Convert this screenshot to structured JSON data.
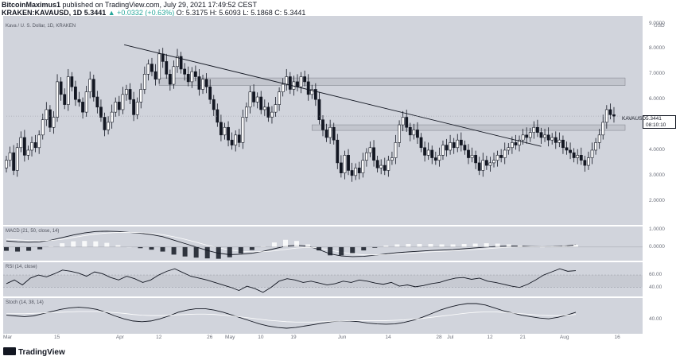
{
  "header": {
    "publisher": "BitcoinMaximus1",
    "published_line": "published on TradingView.com, July 29, 2021 17:49:52 CEST",
    "symbol_line": "KRAKEN:KAVAUSD, 1D",
    "price_line": "5.3441",
    "change_line": "▲ +0.0332 (+0.63%)",
    "ohlc_line": "O: 5.3175  H: 5.6093  L: 5.1868  C: 5.3441"
  },
  "chart_legend": "Kava / U. S. Dollar, 1D, KRAKEN",
  "currency": "USD",
  "price_tag": {
    "symbol": "KAVAUSD",
    "value": "5.3441",
    "timer": "08:10:10"
  },
  "footer": {
    "brand": "TradingView"
  },
  "colors": {
    "pane": "#d1d4dc",
    "candle_up": "#ffffff",
    "candle_down": "#131722",
    "zone": "#c2c5cd",
    "line": "#131722",
    "signal": "#ffffff"
  },
  "chart_data": [
    {
      "type": "candlestick",
      "title": "Kava / U. S. Dollar, 1D, KRAKEN",
      "ylabel": "USD",
      "y_ticks": [
        "9.0000",
        "8.0000",
        "7.0000",
        "6.0000",
        "5.0000",
        "4.0000",
        "3.0000",
        "2.0000"
      ],
      "ylim": [
        1.05,
        9.3
      ],
      "x_ticks": [
        "Mar",
        "15",
        "Apr",
        "12",
        "26",
        "May",
        "10",
        "19",
        "Jun",
        "14",
        "28",
        "Jul",
        "12",
        "21",
        "Aug",
        "16"
      ],
      "x_start": "2021-03-01",
      "x_end": "2021-08-22",
      "closes": [
        3.6,
        3.9,
        3.2,
        4.1,
        4.5,
        3.8,
        4.0,
        4.3,
        4.1,
        4.6,
        5.2,
        5.6,
        4.9,
        5.3,
        6.7,
        6.2,
        5.8,
        6.9,
        6.5,
        6.0,
        5.9,
        5.5,
        6.3,
        6.8,
        6.1,
        5.7,
        5.3,
        4.8,
        5.1,
        5.5,
        5.9,
        5.6,
        6.2,
        6.4,
        6.0,
        5.4,
        5.9,
        6.4,
        7.0,
        7.4,
        7.1,
        6.8,
        7.8,
        7.5,
        7.0,
        6.6,
        7.3,
        7.7,
        7.2,
        7.0,
        6.7,
        7.1,
        6.9,
        6.4,
        6.8,
        6.5,
        6.0,
        5.6,
        5.1,
        4.6,
        4.9,
        4.4,
        4.2,
        4.6,
        4.3,
        5.3,
        5.7,
        6.3,
        5.9,
        6.1,
        5.6,
        5.7,
        5.3,
        5.5,
        5.8,
        6.3,
        6.6,
        6.9,
        6.4,
        6.7,
        6.5,
        6.9,
        6.7,
        6.2,
        6.4,
        6.0,
        5.2,
        4.8,
        4.5,
        4.9,
        4.4,
        3.5,
        3.1,
        3.8,
        3.2,
        3.0,
        3.3,
        3.1,
        3.6,
        3.9,
        4.1,
        3.6,
        3.3,
        3.4,
        3.2,
        3.6,
        3.7,
        4.3,
        5.0,
        5.3,
        4.9,
        4.6,
        4.8,
        4.5,
        4.1,
        3.8,
        4.0,
        3.7,
        3.6,
        3.8,
        4.2,
        4.0,
        4.3,
        4.1,
        4.4,
        4.2,
        4.0,
        3.7,
        3.8,
        3.5,
        3.2,
        3.6,
        3.4,
        3.5,
        3.6,
        3.8,
        3.7,
        4.0,
        4.1,
        4.3,
        4.2,
        4.4,
        4.6,
        4.5,
        4.7,
        4.9,
        4.7,
        4.5,
        4.6,
        4.4,
        4.5,
        4.3,
        4.4,
        4.1,
        4.0,
        3.9,
        3.7,
        3.8,
        3.6,
        3.4,
        3.7,
        4.0,
        4.3,
        4.6,
        5.1,
        5.6,
        5.4,
        5.34
      ],
      "resistance_zones": [
        [
          6.55,
          6.85
        ],
        [
          4.78,
          5.0
        ]
      ],
      "trendline": [
        {
          "x": "2021-04-05",
          "y": 8.1
        },
        {
          "x": "2021-07-26",
          "y": 4.15
        }
      ],
      "last": 5.3441
    },
    {
      "type": "line",
      "title": "MACD (21, 50, close, 14)",
      "y_ticks": [
        "1.0000",
        "0.0000"
      ],
      "series": [
        {
          "values": [
            0.35,
            0.3,
            0.28,
            0.3,
            0.4,
            0.55,
            0.7,
            0.82,
            0.9,
            0.92,
            0.9,
            0.85,
            0.8,
            0.72,
            0.6,
            0.4,
            0.2,
            0.0,
            -0.2,
            -0.36,
            -0.44,
            -0.42,
            -0.36,
            -0.25,
            -0.1,
            0.05,
            0.1,
            0.05,
            -0.15,
            -0.4,
            -0.52,
            -0.56,
            -0.54,
            -0.48,
            -0.4,
            -0.33,
            -0.28,
            -0.24,
            -0.2,
            -0.18,
            -0.15,
            -0.1,
            -0.05,
            0.0,
            0.04,
            0.06,
            0.05,
            0.03,
            0.02,
            0.03,
            0.06,
            0.12
          ]
        },
        {
          "values": [
            0.45,
            0.42,
            0.38,
            0.36,
            0.38,
            0.45,
            0.55,
            0.66,
            0.75,
            0.81,
            0.85,
            0.85,
            0.83,
            0.79,
            0.72,
            0.6,
            0.45,
            0.28,
            0.1,
            -0.05,
            -0.17,
            -0.25,
            -0.28,
            -0.27,
            -0.22,
            -0.14,
            -0.06,
            -0.02,
            -0.06,
            -0.18,
            -0.3,
            -0.4,
            -0.45,
            -0.46,
            -0.44,
            -0.4,
            -0.36,
            -0.32,
            -0.28,
            -0.25,
            -0.22,
            -0.18,
            -0.14,
            -0.1,
            -0.05,
            -0.01,
            0.01,
            0.02,
            0.02,
            0.02,
            0.03,
            0.06
          ]
        }
      ]
    },
    {
      "type": "line",
      "title": "RSI (14, close)",
      "y_ticks": [
        "60.00",
        "40.00"
      ],
      "band": [
        40,
        60
      ],
      "values": [
        46,
        52,
        44,
        55,
        60,
        57,
        62,
        68,
        66,
        63,
        58,
        65,
        62,
        56,
        52,
        58,
        54,
        48,
        52,
        60,
        66,
        70,
        64,
        58,
        55,
        52,
        48,
        44,
        40,
        35,
        42,
        38,
        32,
        40,
        50,
        54,
        52,
        48,
        50,
        47,
        44,
        46,
        50,
        48,
        52,
        50,
        47,
        45,
        48,
        42,
        44,
        41,
        43,
        46,
        48,
        52,
        55,
        56,
        53,
        55,
        50,
        48,
        45,
        42,
        40,
        45,
        52,
        60,
        65,
        70,
        66,
        67
      ]
    },
    {
      "type": "line",
      "title": "Stoch (14, 38, 14)",
      "y_ticks": [
        "40.00"
      ],
      "series": [
        {
          "values": [
            52,
            50,
            48,
            50,
            56,
            62,
            68,
            72,
            74,
            72,
            68,
            60,
            50,
            42,
            36,
            34,
            36,
            42,
            50,
            60,
            66,
            70,
            70,
            66,
            60,
            52,
            44,
            36,
            28,
            22,
            18,
            16,
            18,
            22,
            26,
            30,
            34,
            36,
            36,
            34,
            30,
            28,
            27,
            28,
            32,
            38,
            46,
            56,
            66,
            74,
            80,
            84,
            84,
            80,
            72,
            64,
            58,
            52,
            48,
            44,
            42,
            46,
            52,
            60
          ]
        },
        {
          "values": [
            56,
            56,
            56,
            57,
            58,
            59,
            60,
            61,
            62,
            62,
            62,
            61,
            59,
            57,
            54,
            52,
            51,
            51,
            52,
            53,
            54,
            55,
            55,
            54,
            52,
            50,
            47,
            44,
            41,
            38,
            36,
            34,
            33,
            33,
            33,
            34,
            35,
            36,
            37,
            37,
            37,
            37,
            37,
            38,
            39,
            41,
            43,
            46,
            49,
            52,
            55,
            58,
            60,
            61,
            61,
            60,
            58,
            56,
            54,
            52,
            51,
            51,
            52,
            54
          ]
        }
      ]
    }
  ]
}
